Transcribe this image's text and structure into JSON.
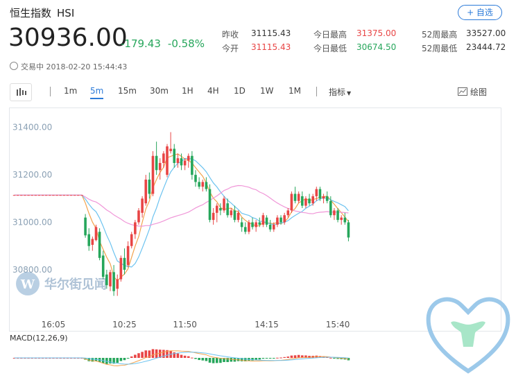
{
  "header": {
    "name": "恒生指数",
    "code": "HSI",
    "add_label": "+ 自选",
    "price": "30936.00",
    "change": "-179.43",
    "change_pct": "-0.58%",
    "status": "交易中 2018-02-20 15:44:43"
  },
  "stats": [
    {
      "label": "昨收",
      "value": "31115.43",
      "color": "#333333"
    },
    {
      "label": "今开",
      "value": "31115.43",
      "color": "#e84545"
    },
    {
      "label": "今日最高",
      "value": "31375.00",
      "color": "#e84545"
    },
    {
      "label": "今日最低",
      "value": "30674.50",
      "color": "#26a65b"
    },
    {
      "label": "52周最高",
      "value": "33527.00",
      "color": "#333333"
    },
    {
      "label": "52周最低",
      "value": "23444.72",
      "color": "#333333"
    }
  ],
  "toolbar": {
    "periods": [
      "1m",
      "5m",
      "15m",
      "30m",
      "1H",
      "4H",
      "1D",
      "1W",
      "1M"
    ],
    "active": "5m",
    "indicator_label": "指标",
    "draw_label": "绘图"
  },
  "watermark": "华尔街见闻",
  "colors": {
    "up": "#e84545",
    "down": "#26a65b",
    "ma_blue": "#6cc3f0",
    "ma_orange": "#f2a24c",
    "ma_pink": "#f096d8",
    "accent": "#2b7ad8"
  },
  "chart_data": {
    "type": "candlestick",
    "ylim": [
      30680,
      31440
    ],
    "y_ticks": [
      "31400.00",
      "31200.00",
      "31000.00",
      "30800.00"
    ],
    "y_tick_values": [
      31400,
      31200,
      31000,
      30800
    ],
    "x_ticks": [
      "16:05",
      "10:25",
      "11:50",
      "14:15",
      "15:40"
    ],
    "x_tick_index": [
      11,
      31,
      48,
      71,
      91
    ],
    "prev_close": 31115.43,
    "candles": [
      [
        31115,
        31115,
        31115,
        31115
      ],
      [
        31115,
        31115,
        31115,
        31115
      ],
      [
        31115,
        31115,
        31115,
        31115
      ],
      [
        31115,
        31115,
        31115,
        31115
      ],
      [
        31115,
        31115,
        31115,
        31115
      ],
      [
        31115,
        31115,
        31115,
        31115
      ],
      [
        31115,
        31115,
        31115,
        31115
      ],
      [
        31115,
        31115,
        31115,
        31115
      ],
      [
        31115,
        31115,
        31115,
        31115
      ],
      [
        31115,
        31115,
        31115,
        31115
      ],
      [
        31115,
        31115,
        31115,
        31115
      ],
      [
        31115,
        31115,
        31115,
        31115
      ],
      [
        31115,
        31115,
        31115,
        31115
      ],
      [
        31115,
        31115,
        31115,
        31115
      ],
      [
        31115,
        31115,
        31115,
        31115
      ],
      [
        31115,
        31115,
        31115,
        31115
      ],
      [
        31115,
        31115,
        31115,
        31115
      ],
      [
        31115,
        31115,
        31115,
        31115
      ],
      [
        31115,
        31115,
        31115,
        31115
      ],
      [
        31115,
        31115,
        31115,
        31115
      ],
      [
        31020,
        31035,
        30935,
        30945
      ],
      [
        30950,
        30975,
        30880,
        30900
      ],
      [
        30905,
        30940,
        30880,
        30930
      ],
      [
        30925,
        30990,
        30920,
        30980
      ],
      [
        30960,
        30975,
        30840,
        30850
      ],
      [
        30860,
        30880,
        30760,
        30770
      ],
      [
        30780,
        30800,
        30720,
        30735
      ],
      [
        30730,
        30800,
        30710,
        30790
      ],
      [
        30790,
        30820,
        30690,
        30710
      ],
      [
        30720,
        30780,
        30690,
        30760
      ],
      [
        30760,
        30860,
        30750,
        30850
      ],
      [
        30850,
        30890,
        30780,
        30800
      ],
      [
        30820,
        30920,
        30810,
        30900
      ],
      [
        30900,
        30960,
        30890,
        30950
      ],
      [
        30950,
        31010,
        30930,
        31000
      ],
      [
        31000,
        31060,
        30990,
        31050
      ],
      [
        31040,
        31110,
        31020,
        31100
      ],
      [
        31080,
        31200,
        31070,
        31180
      ],
      [
        31180,
        31210,
        31100,
        31120
      ],
      [
        31120,
        31300,
        31110,
        31280
      ],
      [
        31280,
        31340,
        31200,
        31220
      ],
      [
        31220,
        31270,
        31180,
        31250
      ],
      [
        31250,
        31300,
        31230,
        31290
      ],
      [
        31200,
        31330,
        31190,
        31320
      ],
      [
        31300,
        31380,
        31290,
        31310
      ],
      [
        31310,
        31330,
        31230,
        31250
      ],
      [
        31250,
        31290,
        31230,
        31270
      ],
      [
        31270,
        31290,
        31220,
        31240
      ],
      [
        31240,
        31270,
        31220,
        31260
      ],
      [
        31260,
        31290,
        31230,
        31280
      ],
      [
        31280,
        31300,
        31180,
        31200
      ],
      [
        31200,
        31220,
        31150,
        31170
      ],
      [
        31170,
        31190,
        31140,
        31150
      ],
      [
        31150,
        31180,
        31130,
        31170
      ],
      [
        31170,
        31190,
        31130,
        31140
      ],
      [
        31140,
        31160,
        31000,
        31010
      ],
      [
        31010,
        31060,
        30990,
        31040
      ],
      [
        31040,
        31080,
        31000,
        31070
      ],
      [
        31060,
        31080,
        31030,
        31050
      ],
      [
        31050,
        31110,
        31040,
        31100
      ],
      [
        31080,
        31100,
        31020,
        31030
      ],
      [
        31030,
        31060,
        31020,
        31050
      ],
      [
        31050,
        31070,
        31000,
        31010
      ],
      [
        31010,
        31050,
        31000,
        31040
      ],
      [
        31000,
        31020,
        30960,
        30980
      ],
      [
        30980,
        31000,
        30950,
        30960
      ],
      [
        30960,
        31010,
        30950,
        31000
      ],
      [
        31000,
        31020,
        30970,
        30980
      ],
      [
        30980,
        31010,
        30960,
        31000
      ],
      [
        31000,
        31020,
        30980,
        30990
      ],
      [
        30990,
        31040,
        30980,
        31030
      ],
      [
        31020,
        31030,
        30980,
        30990
      ],
      [
        30990,
        31010,
        30960,
        30970
      ],
      [
        30970,
        31000,
        30960,
        30990
      ],
      [
        30990,
        31030,
        30980,
        31020
      ],
      [
        31020,
        31030,
        30990,
        31000
      ],
      [
        31000,
        31040,
        30990,
        31030
      ],
      [
        31030,
        31060,
        31020,
        31050
      ],
      [
        31050,
        31130,
        31040,
        31120
      ],
      [
        31120,
        31150,
        31080,
        31090
      ],
      [
        31090,
        31130,
        31080,
        31120
      ],
      [
        31110,
        31130,
        31060,
        31070
      ],
      [
        31070,
        31110,
        31060,
        31100
      ],
      [
        31100,
        31120,
        31070,
        31080
      ],
      [
        31080,
        31120,
        31070,
        31110
      ],
      [
        31110,
        31150,
        31090,
        31140
      ],
      [
        31140,
        31150,
        31090,
        31100
      ],
      [
        31100,
        31120,
        31080,
        31110
      ],
      [
        31110,
        31130,
        31080,
        31090
      ],
      [
        31090,
        31110,
        31020,
        31030
      ],
      [
        31030,
        31060,
        31010,
        31050
      ],
      [
        31050,
        31060,
        31000,
        31010
      ],
      [
        31010,
        31030,
        30990,
        31020
      ],
      [
        31020,
        31040,
        30990,
        31000
      ],
      [
        31000,
        31010,
        30920,
        30936
      ]
    ],
    "macd": {
      "label": "MACD(12,26,9)"
    }
  }
}
